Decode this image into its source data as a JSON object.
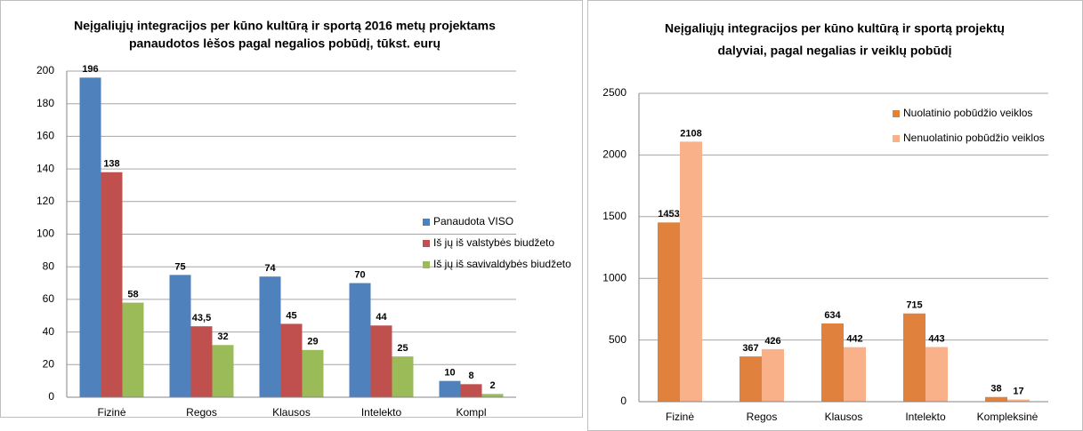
{
  "chart_data": [
    {
      "type": "bar",
      "title": [
        "Neįgaliųjų integracijos per kūno kultūrą ir sportą 2016 metų projektams",
        "panaudotos lėšos pagal negalios pobūdį, tūkst. eurų"
      ],
      "categories": [
        "Fizinė",
        "Regos",
        "Klausos",
        "Intelekto",
        "Kompl"
      ],
      "series": [
        {
          "name": "Panaudota VISO",
          "color": "#4f81bd",
          "values": [
            196,
            75,
            74,
            70,
            10
          ]
        },
        {
          "name": "Iš jų iš valstybės biudžeto",
          "color": "#c0504d",
          "values": [
            138,
            43.5,
            45,
            44,
            8
          ],
          "value_labels": [
            "138",
            "43,5",
            "45",
            "44",
            "8"
          ]
        },
        {
          "name": "Iš jų iš savivaldybės biudžeto",
          "color": "#9bbb59",
          "values": [
            58,
            32,
            29,
            25,
            2
          ]
        }
      ],
      "ylim": [
        0,
        200
      ],
      "yticks": [
        0,
        20,
        40,
        60,
        80,
        100,
        120,
        140,
        160,
        180,
        200
      ],
      "grid": true,
      "legend": "right"
    },
    {
      "type": "bar",
      "title": [
        "Neįgaliųjų integracijos per kūno kultūrą ir sportą projektų",
        "dalyviai, pagal negalias ir veiklų pobūdį"
      ],
      "categories": [
        "Fizinė",
        "Regos",
        "Klausos",
        "Intelekto",
        "Kompleksinė"
      ],
      "series": [
        {
          "name": "Nuolatinio pobūdžio veiklos",
          "color": "#e0823d",
          "values": [
            1453,
            367,
            634,
            715,
            38
          ]
        },
        {
          "name": "Nenuolatinio pobūdžio veiklos",
          "color": "#f9b18a",
          "values": [
            2108,
            426,
            442,
            443,
            17
          ]
        }
      ],
      "ylim": [
        0,
        2500
      ],
      "yticks": [
        0,
        500,
        1000,
        1500,
        2000,
        2500
      ],
      "grid": true,
      "legend": "top-right"
    }
  ]
}
